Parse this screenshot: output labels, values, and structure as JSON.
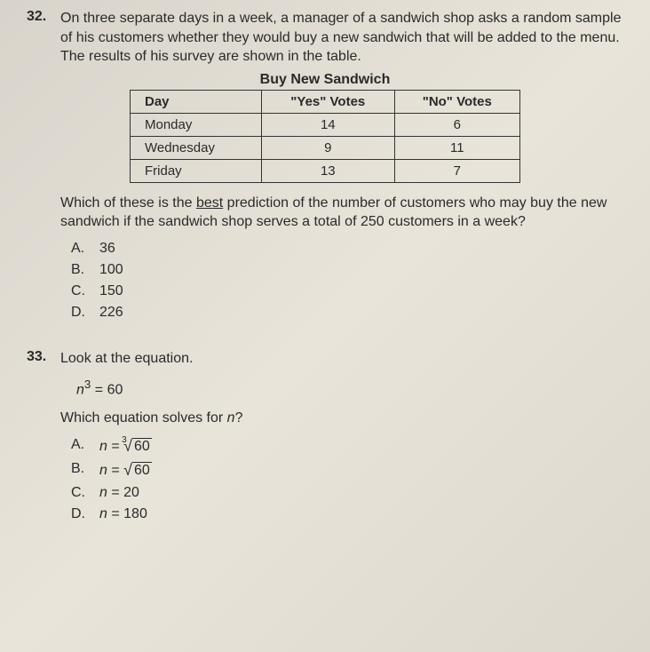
{
  "q32": {
    "number": "32.",
    "text": "On three separate days in a week, a manager of a sandwich shop asks a random sample of his customers whether they would buy a new sandwich that will be added to the menu. The results of his survey are shown in the table.",
    "tableTitle": "Buy New Sandwich",
    "headers": [
      "Day",
      "\"Yes\" Votes",
      "\"No\" Votes"
    ],
    "rows": [
      [
        "Monday",
        "14",
        "6"
      ],
      [
        "Wednesday",
        "9",
        "11"
      ],
      [
        "Friday",
        "13",
        "7"
      ]
    ],
    "followup1": "Which of these is the ",
    "followupUnderline": "best",
    "followup2": " prediction of the number of customers who may buy the new sandwich if the sandwich shop serves a total of 250 customers in a week?",
    "choices": [
      {
        "letter": "A.",
        "text": "36"
      },
      {
        "letter": "B.",
        "text": "100"
      },
      {
        "letter": "C.",
        "text": "150"
      },
      {
        "letter": "D.",
        "text": "226"
      }
    ]
  },
  "q33": {
    "number": "33.",
    "text": "Look at the equation.",
    "equationVar": "n",
    "equationExp": "3",
    "equationRest": " = 60",
    "subtext": "Which equation solves for ",
    "subtextVar": "n",
    "subtextEnd": "?",
    "choices": [
      {
        "letter": "A.",
        "var": "n",
        "eq": " = ",
        "rootIndex": "3",
        "radicand": "60"
      },
      {
        "letter": "B.",
        "var": "n",
        "eq": " = ",
        "rootIndex": "",
        "radicand": "60"
      },
      {
        "letter": "C.",
        "var": "n",
        "eq": " = ",
        "plain": "20"
      },
      {
        "letter": "D.",
        "var": "n",
        "eq": " = ",
        "plain": "180"
      }
    ]
  }
}
